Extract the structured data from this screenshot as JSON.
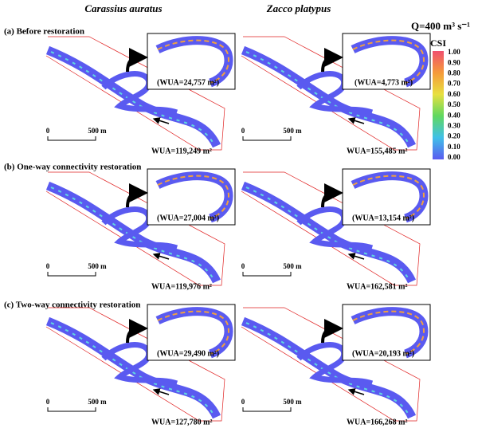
{
  "columns": [
    "Carassius auratus",
    "Zacco platypus"
  ],
  "flow": "Q=400 m³ s⁻¹",
  "legend": {
    "title": "CSI",
    "ticks": [
      "1.00",
      "0.90",
      "0.80",
      "0.70",
      "0.60",
      "0.50",
      "0.40",
      "0.30",
      "0.20",
      "0.10",
      "0.00"
    ]
  },
  "rows": [
    {
      "label": "(a) Before restoration",
      "panels": [
        {
          "inset_wua": "(WUA=24,757 m²)",
          "wua": "WUA=119,249 m²",
          "scale": [
            "0",
            "500 m"
          ]
        },
        {
          "inset_wua": "(WUA=4,773 m²)",
          "wua": "WUA=155,485 m²",
          "scale": [
            "0",
            "500 m"
          ]
        }
      ]
    },
    {
      "label": "(b) One-way connectivity restoration",
      "panels": [
        {
          "inset_wua": "(WUA=27,004 m²)",
          "wua": "WUA=119,976 m²",
          "scale": [
            "0",
            "500 m"
          ]
        },
        {
          "inset_wua": "(WUA=13,154 m²)",
          "wua": "WUA=162,581 m²",
          "scale": [
            "0",
            "500 m"
          ]
        }
      ]
    },
    {
      "label": "(c) Two-way connectivity restoration",
      "panels": [
        {
          "inset_wua": "(WUA=29,490 m²)",
          "wua": "WUA=127,780 m²",
          "scale": [
            "0",
            "500 m"
          ]
        },
        {
          "inset_wua": "(WUA=20,193 m²)",
          "wua": "WUA=166,268 m²",
          "scale": [
            "0",
            "500 m"
          ]
        }
      ]
    }
  ]
}
